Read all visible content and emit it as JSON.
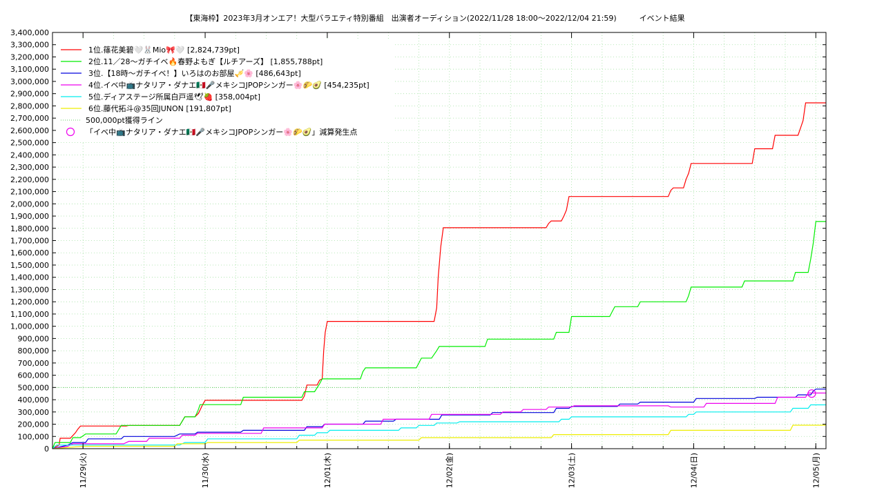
{
  "chart_data": {
    "type": "line",
    "title": "【東海枠】2023年3月オンエア！大型バラエティ特別番組　出演者オーディション(2022/11/28 18:00〜2022/12/04 21:59)　　　イベント結果",
    "xlabel": "",
    "ylabel": "",
    "ylim": [
      0,
      3400000
    ],
    "y_ticks": [
      "0",
      "100,000",
      "200,000",
      "300,000",
      "400,000",
      "500,000",
      "600,000",
      "700,000",
      "800,000",
      "900,000",
      "1,000,000",
      "1,100,000",
      "1,200,000",
      "1,300,000",
      "1,400,000",
      "1,500,000",
      "1,600,000",
      "1,700,000",
      "1,800,000",
      "1,900,000",
      "2,000,000",
      "2,100,000",
      "2,200,000",
      "2,300,000",
      "2,400,000",
      "2,500,000",
      "2,600,000",
      "2,700,000",
      "2,800,000",
      "2,900,000",
      "3,000,000",
      "3,100,000",
      "3,200,000",
      "3,300,000",
      "3,400,000"
    ],
    "x_ticks": [
      "11/29(火)",
      "11/30(水)",
      "12/01(木)",
      "12/02(金)",
      "12/03(土)",
      "12/04(日)",
      "12/05(月)"
    ],
    "x_tick_hours": [
      6,
      30,
      54,
      78,
      102,
      126,
      150
    ],
    "xlim_hours": [
      0,
      152
    ],
    "x_unit": "hours since 2022/11/28 18:00",
    "grid": true,
    "legend_position": "top-left",
    "series": [
      {
        "name": "1位.篠花美碧🤍🐰Mio🎀🤍 [2,824,739pt]",
        "color": "#ff0000",
        "points": [
          [
            0,
            0
          ],
          [
            1.3,
            30000
          ],
          [
            1.5,
            85000
          ],
          [
            3.5,
            85000
          ],
          [
            4.5,
            130000
          ],
          [
            5,
            160000
          ],
          [
            5.5,
            185000
          ],
          [
            14.5,
            185000
          ],
          [
            15,
            190000
          ],
          [
            25,
            190000
          ],
          [
            26,
            260000
          ],
          [
            28,
            260000
          ],
          [
            28.7,
            290000
          ],
          [
            29.5,
            360000
          ],
          [
            30,
            395000
          ],
          [
            49,
            395000
          ],
          [
            49.5,
            430000
          ],
          [
            50,
            520000
          ],
          [
            52,
            520000
          ],
          [
            52.5,
            560000
          ],
          [
            53,
            570000
          ],
          [
            53.3,
            800000
          ],
          [
            53.6,
            950000
          ],
          [
            54,
            1040000
          ],
          [
            75,
            1040000
          ],
          [
            75.5,
            1150000
          ],
          [
            75.8,
            1400000
          ],
          [
            76.3,
            1650000
          ],
          [
            76.8,
            1805000
          ],
          [
            97,
            1805000
          ],
          [
            97.5,
            1840000
          ],
          [
            98,
            1860000
          ],
          [
            100,
            1860000
          ],
          [
            100.5,
            1900000
          ],
          [
            101,
            1950000
          ],
          [
            101.5,
            2060000
          ],
          [
            121,
            2060000
          ],
          [
            121.5,
            2110000
          ],
          [
            122,
            2130000
          ],
          [
            124,
            2130000
          ],
          [
            124.5,
            2200000
          ],
          [
            125,
            2250000
          ],
          [
            125.5,
            2330000
          ],
          [
            137.5,
            2330000
          ],
          [
            138,
            2450000
          ],
          [
            141.5,
            2450000
          ],
          [
            142,
            2560000
          ],
          [
            146.5,
            2560000
          ],
          [
            147,
            2620000
          ],
          [
            147.5,
            2680000
          ],
          [
            148,
            2824739
          ],
          [
            152,
            2824739
          ]
        ]
      },
      {
        "name": "2位.11／28〜ガチイベ🔥春野よもぎ【ルチアーズ】 [1,855,788pt]",
        "color": "#00ee00",
        "points": [
          [
            0,
            0
          ],
          [
            0.5,
            50000
          ],
          [
            3.5,
            50000
          ],
          [
            4,
            90000
          ],
          [
            5.5,
            90000
          ],
          [
            6.5,
            120000
          ],
          [
            12.5,
            120000
          ],
          [
            13.5,
            190000
          ],
          [
            25,
            190000
          ],
          [
            26,
            260000
          ],
          [
            28,
            260000
          ],
          [
            28.5,
            300000
          ],
          [
            29,
            360000
          ],
          [
            37,
            360000
          ],
          [
            37.5,
            420000
          ],
          [
            49,
            420000
          ],
          [
            49.5,
            465000
          ],
          [
            51.5,
            465000
          ],
          [
            52.5,
            530000
          ],
          [
            53,
            570000
          ],
          [
            60.5,
            570000
          ],
          [
            61,
            630000
          ],
          [
            61.5,
            660000
          ],
          [
            71.5,
            660000
          ],
          [
            72,
            700000
          ],
          [
            72.5,
            740000
          ],
          [
            74.5,
            740000
          ],
          [
            75.5,
            800000
          ],
          [
            76,
            835000
          ],
          [
            85,
            835000
          ],
          [
            85.5,
            895000
          ],
          [
            98.5,
            895000
          ],
          [
            99,
            950000
          ],
          [
            101.5,
            950000
          ],
          [
            102,
            1080000
          ],
          [
            109.5,
            1080000
          ],
          [
            110,
            1120000
          ],
          [
            110.5,
            1160000
          ],
          [
            115,
            1160000
          ],
          [
            115.5,
            1200000
          ],
          [
            124.5,
            1200000
          ],
          [
            125,
            1250000
          ],
          [
            125.5,
            1320000
          ],
          [
            135.5,
            1320000
          ],
          [
            136,
            1370000
          ],
          [
            145.5,
            1370000
          ],
          [
            146,
            1440000
          ],
          [
            148.5,
            1440000
          ],
          [
            149,
            1550000
          ],
          [
            149.5,
            1680000
          ],
          [
            150,
            1855788
          ],
          [
            152,
            1855788
          ]
        ]
      },
      {
        "name": "3位.【18時〜ガチイベ！】いろはのお部屋🎺🌸 [486,643pt]",
        "color": "#0000dd",
        "points": [
          [
            0,
            0
          ],
          [
            3,
            30000
          ],
          [
            4,
            50000
          ],
          [
            6.5,
            50000
          ],
          [
            7,
            80000
          ],
          [
            13.5,
            80000
          ],
          [
            14,
            100000
          ],
          [
            24,
            100000
          ],
          [
            25,
            120000
          ],
          [
            28,
            120000
          ],
          [
            28.5,
            135000
          ],
          [
            37,
            135000
          ],
          [
            37.5,
            150000
          ],
          [
            49.5,
            150000
          ],
          [
            50,
            180000
          ],
          [
            53,
            180000
          ],
          [
            53.5,
            200000
          ],
          [
            61,
            200000
          ],
          [
            61.5,
            225000
          ],
          [
            67,
            225000
          ],
          [
            67.5,
            240000
          ],
          [
            76,
            240000
          ],
          [
            76.5,
            275000
          ],
          [
            86,
            275000
          ],
          [
            86.5,
            295000
          ],
          [
            98.5,
            295000
          ],
          [
            99,
            330000
          ],
          [
            101.5,
            330000
          ],
          [
            102,
            345000
          ],
          [
            111,
            345000
          ],
          [
            111.5,
            365000
          ],
          [
            115,
            365000
          ],
          [
            115.5,
            380000
          ],
          [
            126,
            380000
          ],
          [
            126.5,
            410000
          ],
          [
            138,
            410000
          ],
          [
            138.5,
            420000
          ],
          [
            146,
            420000
          ],
          [
            146.5,
            440000
          ],
          [
            149,
            440000
          ],
          [
            149.5,
            470000
          ],
          [
            150,
            486643
          ],
          [
            152,
            486643
          ]
        ]
      },
      {
        "name": "4位.イベ中📺ナタリア・ダナエ🇲🇽🎤メキシコJPOPシンガー🌸🌮🥑 [454,235pt]",
        "color": "#ee00ee",
        "points": [
          [
            0,
            0
          ],
          [
            3,
            20000
          ],
          [
            4,
            40000
          ],
          [
            14,
            40000
          ],
          [
            15,
            60000
          ],
          [
            18.5,
            60000
          ],
          [
            19,
            85000
          ],
          [
            25,
            85000
          ],
          [
            25.5,
            110000
          ],
          [
            28,
            110000
          ],
          [
            28.5,
            125000
          ],
          [
            41,
            125000
          ],
          [
            41.5,
            170000
          ],
          [
            53,
            170000
          ],
          [
            53.5,
            200000
          ],
          [
            64.5,
            200000
          ],
          [
            65,
            240000
          ],
          [
            74,
            240000
          ],
          [
            74.5,
            280000
          ],
          [
            88,
            280000
          ],
          [
            88.5,
            300000
          ],
          [
            92,
            300000
          ],
          [
            92.5,
            320000
          ],
          [
            97,
            320000
          ],
          [
            97.5,
            340000
          ],
          [
            102,
            340000
          ],
          [
            102.5,
            350000
          ],
          [
            121,
            350000
          ],
          [
            121.5,
            340000
          ],
          [
            128,
            340000
          ],
          [
            128.5,
            370000
          ],
          [
            142,
            370000
          ],
          [
            142.5,
            420000
          ],
          [
            148,
            420000
          ],
          [
            148.5,
            454235
          ],
          [
            152,
            454235
          ]
        ]
      },
      {
        "name": "5位.ディアステージ所属白戸遥🕊🍓 [358,004pt]",
        "color": "#00eeee",
        "points": [
          [
            0,
            0
          ],
          [
            0.8,
            30000
          ],
          [
            25,
            30000
          ],
          [
            26,
            50000
          ],
          [
            30,
            50000
          ],
          [
            30.5,
            80000
          ],
          [
            48,
            80000
          ],
          [
            48.5,
            110000
          ],
          [
            51.5,
            110000
          ],
          [
            52,
            130000
          ],
          [
            54,
            130000
          ],
          [
            54.5,
            150000
          ],
          [
            68,
            150000
          ],
          [
            68.5,
            170000
          ],
          [
            71.5,
            170000
          ],
          [
            72,
            190000
          ],
          [
            75,
            190000
          ],
          [
            75.5,
            210000
          ],
          [
            79.5,
            210000
          ],
          [
            80,
            220000
          ],
          [
            99.5,
            220000
          ],
          [
            100,
            240000
          ],
          [
            101.5,
            240000
          ],
          [
            102,
            260000
          ],
          [
            124.5,
            260000
          ],
          [
            125,
            280000
          ],
          [
            126,
            280000
          ],
          [
            126.5,
            300000
          ],
          [
            145,
            300000
          ],
          [
            145.5,
            330000
          ],
          [
            148.5,
            330000
          ],
          [
            149,
            358004
          ],
          [
            152,
            358004
          ]
        ]
      },
      {
        "name": "6位.藤代拓斗@35回JUNON [191,807pt]",
        "color": "#eeee00",
        "points": [
          [
            0,
            0
          ],
          [
            6,
            20000
          ],
          [
            24,
            20000
          ],
          [
            24.5,
            40000
          ],
          [
            30,
            40000
          ],
          [
            30.5,
            50000
          ],
          [
            48,
            50000
          ],
          [
            48.5,
            70000
          ],
          [
            72,
            70000
          ],
          [
            72.5,
            90000
          ],
          [
            98,
            90000
          ],
          [
            98.5,
            115000
          ],
          [
            121,
            115000
          ],
          [
            121.5,
            150000
          ],
          [
            145,
            150000
          ],
          [
            145.5,
            191807
          ],
          [
            152,
            191807
          ]
        ]
      }
    ],
    "reference_line": {
      "name": "500,000pt獲得ライン",
      "value": 500000,
      "color": "#66cc66"
    },
    "marker": {
      "name": "「イベ中📺ナタリア・ダナエ🇲🇽🎤メキシコJPOPシンガー🌸🌮🥑」減算発生点",
      "x": 149.2,
      "y": 450000,
      "color": "#ee00ee"
    }
  }
}
